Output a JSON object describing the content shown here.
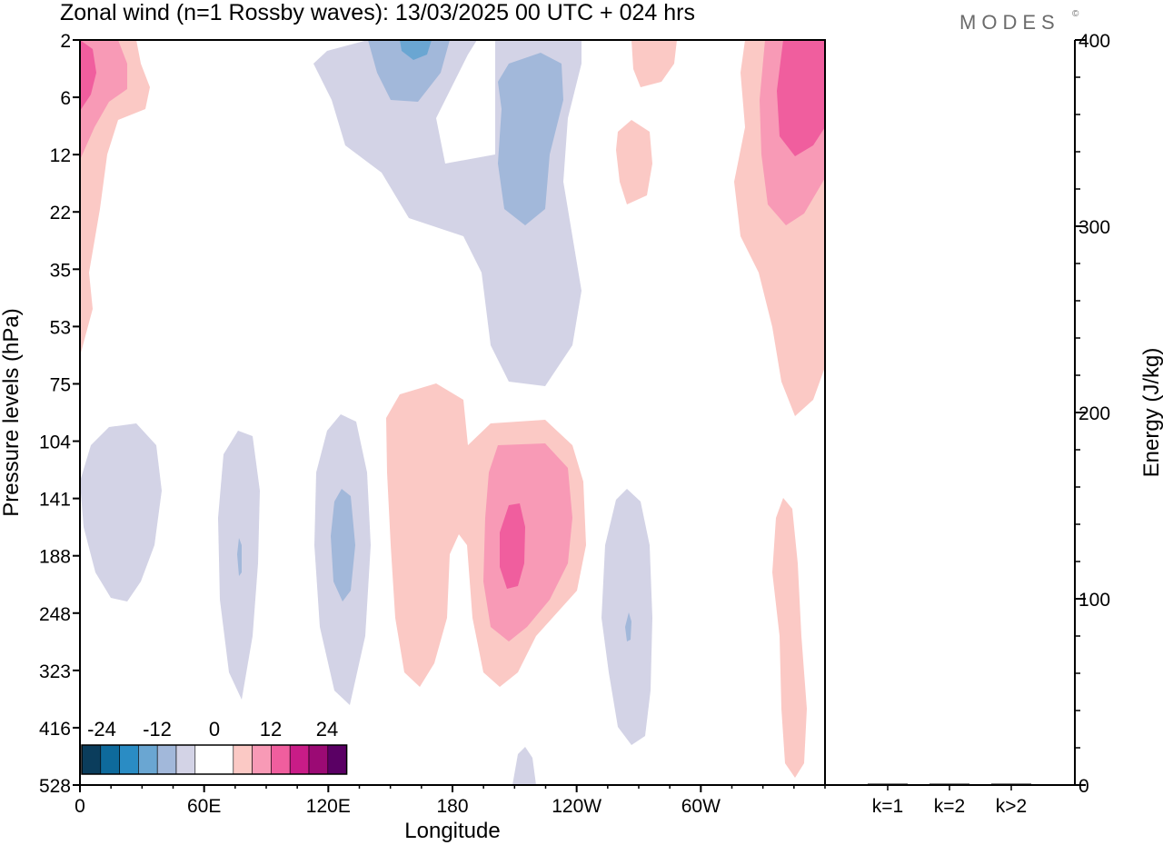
{
  "chart_data": {
    "type": "contour",
    "title": "Zonal wind (n=1 Rossby waves):  13/03/2025  00 UTC  + 024 hrs",
    "logo": "MODES",
    "logo_mark": "©",
    "main_panel": {
      "xlabel": "Longitude",
      "ylabel": "Pressure levels (hPa)",
      "x_ticks": [
        "0",
        "60E",
        "120E",
        "180",
        "120W",
        "60W"
      ],
      "y_ticks": [
        "2",
        "6",
        "12",
        "22",
        "35",
        "53",
        "75",
        "104",
        "141",
        "188",
        "248",
        "323",
        "416",
        "528"
      ],
      "colorbar": {
        "tick_labels": [
          "-24",
          "-12",
          "0",
          "12",
          "24"
        ],
        "levels": [
          -28,
          -24,
          -20,
          -16,
          -12,
          -8,
          -4,
          4,
          8,
          12,
          16,
          20,
          24,
          28
        ],
        "colors": [
          "#0b3d5c",
          "#0e6a9c",
          "#2a8cc4",
          "#6aa6d2",
          "#a2b8da",
          "#d3d3e6",
          "#ffffff",
          "#fbc9c5",
          "#f89ab6",
          "#f05e9e",
          "#c91c87",
          "#9b0a74",
          "#5a0064"
        ]
      },
      "features": [
        {
          "value": 8,
          "region": "0°, 2–53 hPa"
        },
        {
          "value": -4,
          "region": "20E, 104–248 hPa"
        },
        {
          "value": -4,
          "region": "75E, 104–416 hPa"
        },
        {
          "value": -8,
          "region": "125E, 141–248 hPa"
        },
        {
          "value": -8,
          "region": "160E, 2–6 hPa"
        },
        {
          "value": -8,
          "region": "160W, 4–22 hPa"
        },
        {
          "value": 4,
          "region": "180–120W, 75–323 hPa"
        },
        {
          "value": 16,
          "region": "160W, 141–248 hPa"
        },
        {
          "value": -4,
          "region": "100W, 141–416 hPa"
        },
        {
          "value": 4,
          "region": "80W, 2–12 hPa"
        },
        {
          "value": 16,
          "region": "30W, 2–22 hPa"
        },
        {
          "value": 4,
          "region": "40W–0, 141–528 hPa"
        }
      ]
    },
    "energy_panel": {
      "ylabel": "Energy (J/kg)",
      "ylim": [
        0,
        400
      ],
      "y_ticks": [
        "0",
        "100",
        "200",
        "300",
        "400"
      ],
      "categories": [
        "k=1",
        "k=2",
        "k>2"
      ],
      "values": [
        0.5,
        0.2,
        0.3
      ]
    }
  }
}
